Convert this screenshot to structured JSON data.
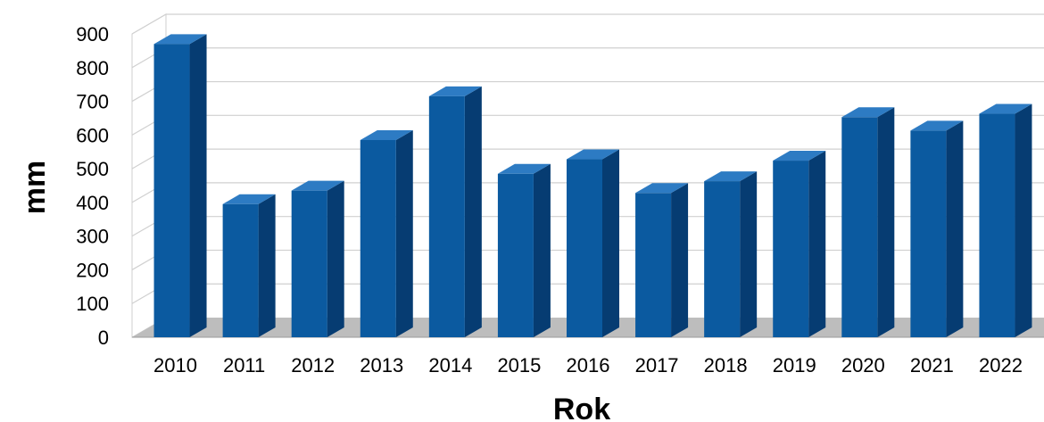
{
  "chart_data": {
    "type": "bar",
    "style": "3d",
    "title": "",
    "xlabel": "Rok",
    "ylabel": "mm",
    "ylim": [
      0,
      900
    ],
    "yticks": [
      "0",
      "100",
      "200",
      "300",
      "400",
      "500",
      "600",
      "700",
      "800",
      "900"
    ],
    "grid": true,
    "legend": "none",
    "categories": [
      "2010",
      "2011",
      "2012",
      "2013",
      "2014",
      "2015",
      "2016",
      "2017",
      "2018",
      "2019",
      "2020",
      "2021",
      "2022"
    ],
    "values": [
      870,
      395,
      435,
      585,
      715,
      485,
      528,
      428,
      463,
      524,
      653,
      613,
      663
    ],
    "colors": {
      "bar_front": "#0b5aa0",
      "bar_side": "#063c72",
      "bar_top": "#2d7bc3",
      "floor": "#bdbdbd",
      "grid": "#d0d0d0",
      "wall_edge": "#cfcfcf"
    }
  }
}
